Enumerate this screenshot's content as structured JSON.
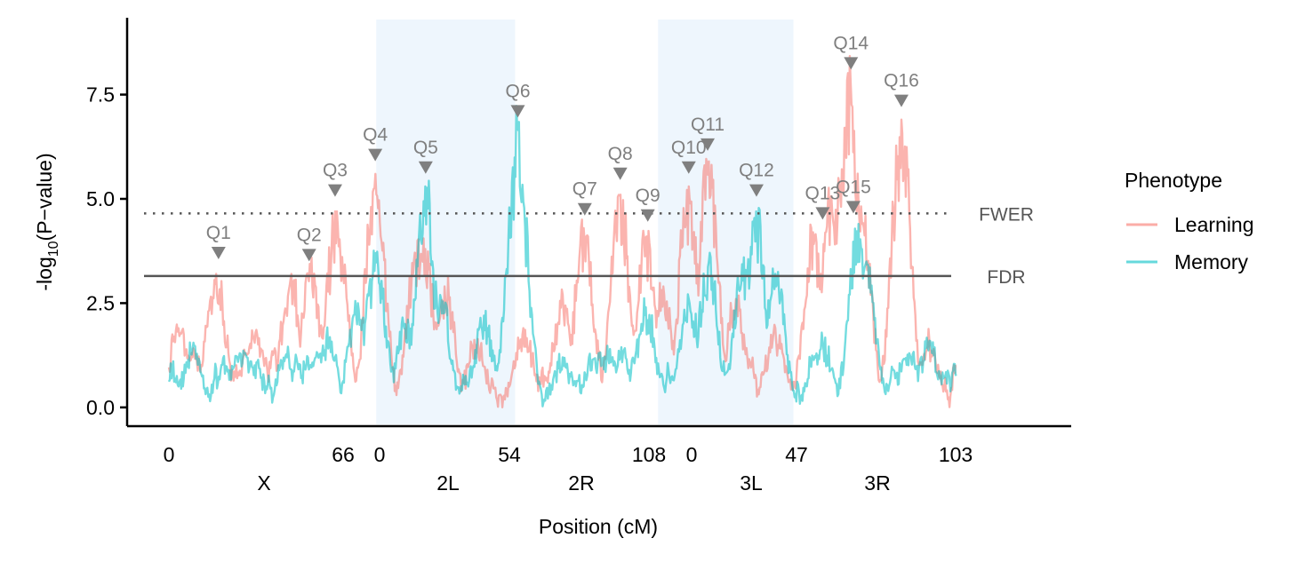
{
  "chart_data": {
    "type": "line",
    "xlabel": "Position (cM)",
    "ylabel_prefix": "-log",
    "ylabel_sub": "10",
    "ylabel_suffix": "(P−value)",
    "ylim": [
      -0.45,
      9.3
    ],
    "yticks": [
      {
        "value": 0.0,
        "label": "0.0"
      },
      {
        "value": 2.5,
        "label": "2.5"
      },
      {
        "value": 5.0,
        "label": "5.0"
      },
      {
        "value": 7.5,
        "label": "7.5"
      }
    ],
    "chromosomes": [
      {
        "name": "X",
        "start_label": "0",
        "end_label": "66",
        "shaded": false
      },
      {
        "name": "2L",
        "start_label": "0",
        "end_label": "54",
        "shaded": true
      },
      {
        "name": "2R",
        "start_label": "",
        "end_label": "108",
        "shaded": false
      },
      {
        "name": "3L",
        "start_label": "0",
        "end_label": "47",
        "shaded": true
      },
      {
        "name": "3R",
        "start_label": "",
        "end_label": "103",
        "shaded": false
      }
    ],
    "thresholds": [
      {
        "name": "FWER",
        "value": 4.65,
        "style": "dotted",
        "color": "#555555"
      },
      {
        "name": "FDR",
        "value": 3.15,
        "style": "solid",
        "color": "#555555"
      }
    ],
    "legend": {
      "title": "Phenotype",
      "position": "right"
    },
    "series": [
      {
        "name": "Learning",
        "color": "#F8766D",
        "peaks": [
          {
            "pos": 0.012,
            "v": 1.9
          },
          {
            "pos": 0.06,
            "v": 3.2
          },
          {
            "pos": 0.11,
            "v": 1.8
          },
          {
            "pos": 0.155,
            "v": 3.2
          },
          {
            "pos": 0.18,
            "v": 3.2
          },
          {
            "pos": 0.213,
            "v": 4.7
          },
          {
            "pos": 0.262,
            "v": 5.6
          },
          {
            "pos": 0.315,
            "v": 4.0
          },
          {
            "pos": 0.325,
            "v": 3.8
          },
          {
            "pos": 0.35,
            "v": 2.9
          },
          {
            "pos": 0.39,
            "v": 1.5
          },
          {
            "pos": 0.45,
            "v": 1.9
          },
          {
            "pos": 0.5,
            "v": 2.7
          },
          {
            "pos": 0.527,
            "v": 4.3
          },
          {
            "pos": 0.573,
            "v": 5.1
          },
          {
            "pos": 0.607,
            "v": 4.1
          },
          {
            "pos": 0.628,
            "v": 2.9
          },
          {
            "pos": 0.66,
            "v": 5.3
          },
          {
            "pos": 0.685,
            "v": 5.9
          },
          {
            "pos": 0.72,
            "v": 2.6
          },
          {
            "pos": 0.77,
            "v": 1.9
          },
          {
            "pos": 0.818,
            "v": 4.2
          },
          {
            "pos": 0.84,
            "v": 5.0
          },
          {
            "pos": 0.855,
            "v": 5.4
          },
          {
            "pos": 0.865,
            "v": 7.8
          },
          {
            "pos": 0.88,
            "v": 4.4
          },
          {
            "pos": 0.93,
            "v": 6.9
          },
          {
            "pos": 0.965,
            "v": 1.6
          }
        ]
      },
      {
        "name": "Memory",
        "color": "#00BFC4",
        "peaks": [
          {
            "pos": 0.03,
            "v": 1.4
          },
          {
            "pos": 0.09,
            "v": 1.3
          },
          {
            "pos": 0.15,
            "v": 1.2
          },
          {
            "pos": 0.2,
            "v": 1.7
          },
          {
            "pos": 0.24,
            "v": 2.5
          },
          {
            "pos": 0.262,
            "v": 3.7
          },
          {
            "pos": 0.3,
            "v": 2.0
          },
          {
            "pos": 0.325,
            "v": 5.3
          },
          {
            "pos": 0.345,
            "v": 2.6
          },
          {
            "pos": 0.4,
            "v": 2.2
          },
          {
            "pos": 0.438,
            "v": 4.5
          },
          {
            "pos": 0.443,
            "v": 6.65
          },
          {
            "pos": 0.5,
            "v": 1.2
          },
          {
            "pos": 0.56,
            "v": 1.4
          },
          {
            "pos": 0.605,
            "v": 2.4
          },
          {
            "pos": 0.66,
            "v": 2.6
          },
          {
            "pos": 0.685,
            "v": 3.5
          },
          {
            "pos": 0.73,
            "v": 3.6
          },
          {
            "pos": 0.745,
            "v": 4.7
          },
          {
            "pos": 0.77,
            "v": 3.2
          },
          {
            "pos": 0.83,
            "v": 1.6
          },
          {
            "pos": 0.875,
            "v": 4.4
          },
          {
            "pos": 0.885,
            "v": 3.5
          },
          {
            "pos": 0.94,
            "v": 1.3
          },
          {
            "pos": 0.965,
            "v": 1.6
          }
        ]
      }
    ],
    "qtls": [
      {
        "label": "Q1",
        "pos": 0.063,
        "v": 3.7
      },
      {
        "label": "Q2",
        "pos": 0.178,
        "v": 3.65
      },
      {
        "label": "Q3",
        "pos": 0.211,
        "v": 5.2
      },
      {
        "label": "Q4",
        "pos": 0.262,
        "v": 6.05
      },
      {
        "label": "Q5",
        "pos": 0.326,
        "v": 5.75
      },
      {
        "label": "Q6",
        "pos": 0.443,
        "v": 7.1
      },
      {
        "label": "Q7",
        "pos": 0.528,
        "v": 4.75
      },
      {
        "label": "Q8",
        "pos": 0.573,
        "v": 5.6
      },
      {
        "label": "Q9",
        "pos": 0.608,
        "v": 4.6
      },
      {
        "label": "Q10",
        "pos": 0.66,
        "v": 5.75
      },
      {
        "label": "Q11",
        "pos": 0.684,
        "v": 6.3
      },
      {
        "label": "Q12",
        "pos": 0.746,
        "v": 5.2
      },
      {
        "label": "Q13",
        "pos": 0.83,
        "v": 4.65
      },
      {
        "label": "Q14",
        "pos": 0.866,
        "v": 8.25
      },
      {
        "label": "Q15",
        "pos": 0.869,
        "v": 4.8
      },
      {
        "label": "Q16",
        "pos": 0.93,
        "v": 7.35
      }
    ]
  }
}
